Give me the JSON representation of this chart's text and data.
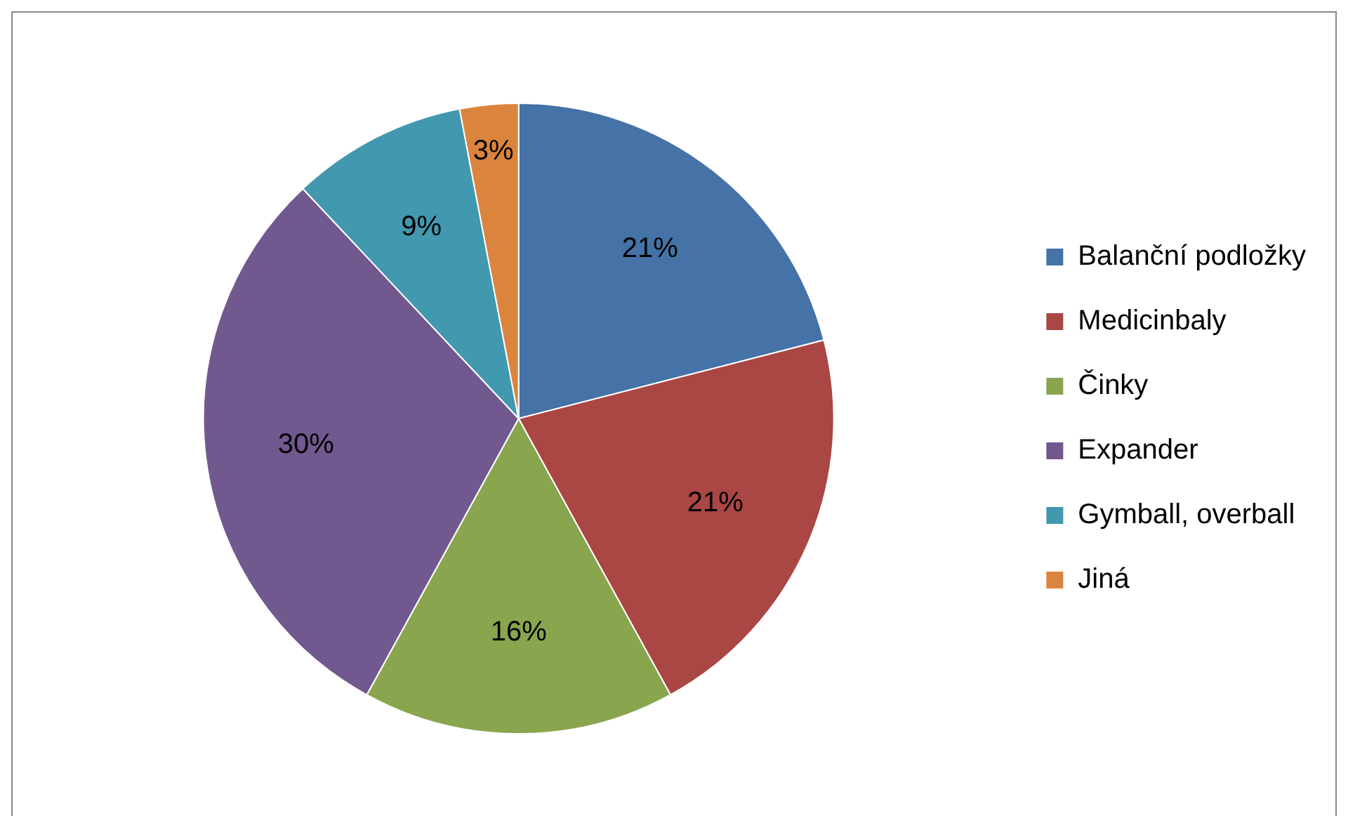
{
  "chart_data": {
    "type": "pie",
    "categories": [
      "Balanční podložky",
      "Medicinbaly",
      "Činky",
      "Expander",
      "Gymball, overball",
      "Jiná"
    ],
    "values": [
      21,
      21,
      16,
      30,
      9,
      3
    ],
    "colors": [
      "#4572a7",
      "#aa4643",
      "#89a54e",
      "#71588f",
      "#4198af",
      "#db843d"
    ],
    "value_labels": [
      "21%",
      "21%",
      "16%",
      "30%",
      "9%",
      "3%"
    ],
    "legend": "right"
  }
}
